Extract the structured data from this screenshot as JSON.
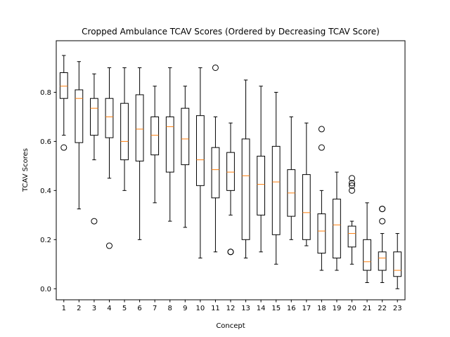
{
  "chart_data": {
    "type": "box",
    "title": "Cropped Ambulance TCAV Scores (Ordered by Decreasing TCAV Score)",
    "xlabel": "Concept",
    "ylabel": "TCAV Scores",
    "categories": [
      "1",
      "2",
      "3",
      "4",
      "5",
      "6",
      "7",
      "8",
      "9",
      "10",
      "11",
      "12",
      "13",
      "14",
      "15",
      "16",
      "17",
      "18",
      "19",
      "20",
      "21",
      "22",
      "23"
    ],
    "ylim": [
      -0.045,
      1.01
    ],
    "yticks": [
      0.0,
      0.2,
      0.4,
      0.6,
      0.8
    ],
    "ytick_labels": [
      "0.0",
      "0.2",
      "0.4",
      "0.6",
      "0.8"
    ],
    "grid": false,
    "colors": {
      "box": "#000000",
      "median": "#ff7f0e",
      "flier": "#000000"
    },
    "boxes": [
      {
        "concept": "1",
        "whisker_low": 0.625,
        "q1": 0.775,
        "median": 0.825,
        "q3": 0.88,
        "whisker_high": 0.95,
        "outliers": [
          0.575
        ]
      },
      {
        "concept": "2",
        "whisker_low": 0.325,
        "q1": 0.595,
        "median": 0.775,
        "q3": 0.81,
        "whisker_high": 0.925,
        "outliers": []
      },
      {
        "concept": "3",
        "whisker_low": 0.525,
        "q1": 0.625,
        "median": 0.735,
        "q3": 0.775,
        "whisker_high": 0.875,
        "outliers": [
          0.275
        ]
      },
      {
        "concept": "4",
        "whisker_low": 0.45,
        "q1": 0.615,
        "median": 0.7,
        "q3": 0.775,
        "whisker_high": 0.9,
        "outliers": [
          0.175
        ]
      },
      {
        "concept": "5",
        "whisker_low": 0.4,
        "q1": 0.525,
        "median": 0.6,
        "q3": 0.755,
        "whisker_high": 0.9,
        "outliers": []
      },
      {
        "concept": "6",
        "whisker_low": 0.2,
        "q1": 0.52,
        "median": 0.65,
        "q3": 0.79,
        "whisker_high": 0.9,
        "outliers": []
      },
      {
        "concept": "7",
        "whisker_low": 0.35,
        "q1": 0.545,
        "median": 0.625,
        "q3": 0.7,
        "whisker_high": 0.825,
        "outliers": []
      },
      {
        "concept": "8",
        "whisker_low": 0.275,
        "q1": 0.475,
        "median": 0.66,
        "q3": 0.7,
        "whisker_high": 0.9,
        "outliers": []
      },
      {
        "concept": "9",
        "whisker_low": 0.25,
        "q1": 0.505,
        "median": 0.61,
        "q3": 0.735,
        "whisker_high": 0.825,
        "outliers": []
      },
      {
        "concept": "10",
        "whisker_low": 0.125,
        "q1": 0.42,
        "median": 0.525,
        "q3": 0.705,
        "whisker_high": 0.9,
        "outliers": []
      },
      {
        "concept": "11",
        "whisker_low": 0.15,
        "q1": 0.37,
        "median": 0.485,
        "q3": 0.575,
        "whisker_high": 0.7,
        "outliers": [
          0.9
        ]
      },
      {
        "concept": "12",
        "whisker_low": 0.3,
        "q1": 0.4,
        "median": 0.475,
        "q3": 0.555,
        "whisker_high": 0.675,
        "outliers": [
          0.15,
          0.15
        ]
      },
      {
        "concept": "13",
        "whisker_low": 0.125,
        "q1": 0.2,
        "median": 0.46,
        "q3": 0.61,
        "whisker_high": 0.85,
        "outliers": []
      },
      {
        "concept": "14",
        "whisker_low": 0.15,
        "q1": 0.3,
        "median": 0.425,
        "q3": 0.54,
        "whisker_high": 0.825,
        "outliers": []
      },
      {
        "concept": "15",
        "whisker_low": 0.1,
        "q1": 0.22,
        "median": 0.435,
        "q3": 0.58,
        "whisker_high": 0.8,
        "outliers": []
      },
      {
        "concept": "16",
        "whisker_low": 0.2,
        "q1": 0.295,
        "median": 0.39,
        "q3": 0.485,
        "whisker_high": 0.7,
        "outliers": []
      },
      {
        "concept": "17",
        "whisker_low": 0.175,
        "q1": 0.2,
        "median": 0.31,
        "q3": 0.465,
        "whisker_high": 0.675,
        "outliers": []
      },
      {
        "concept": "18",
        "whisker_low": 0.075,
        "q1": 0.145,
        "median": 0.235,
        "q3": 0.305,
        "whisker_high": 0.4,
        "outliers": [
          0.575,
          0.65
        ]
      },
      {
        "concept": "19",
        "whisker_low": 0.075,
        "q1": 0.125,
        "median": 0.26,
        "q3": 0.365,
        "whisker_high": 0.475,
        "outliers": []
      },
      {
        "concept": "20",
        "whisker_low": 0.1,
        "q1": 0.17,
        "median": 0.225,
        "q3": 0.255,
        "whisker_high": 0.275,
        "outliers": [
          0.4,
          0.42,
          0.43,
          0.45
        ]
      },
      {
        "concept": "21",
        "whisker_low": 0.025,
        "q1": 0.075,
        "median": 0.11,
        "q3": 0.2,
        "whisker_high": 0.35,
        "outliers": []
      },
      {
        "concept": "22",
        "whisker_low": 0.025,
        "q1": 0.075,
        "median": 0.125,
        "q3": 0.15,
        "whisker_high": 0.225,
        "outliers": [
          0.275,
          0.325,
          0.325
        ]
      },
      {
        "concept": "23",
        "whisker_low": 0.0,
        "q1": 0.05,
        "median": 0.075,
        "q3": 0.15,
        "whisker_high": 0.225,
        "outliers": []
      }
    ]
  }
}
